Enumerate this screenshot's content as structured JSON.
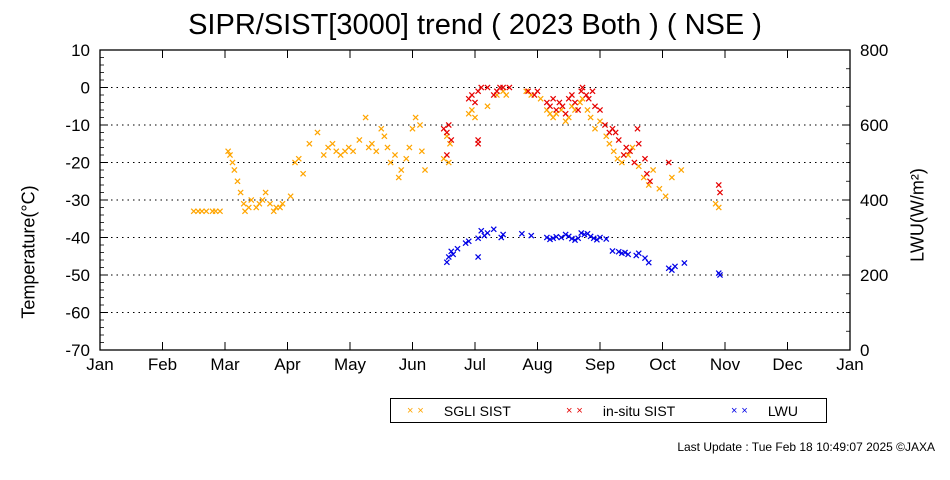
{
  "chart_data": {
    "type": "scatter",
    "title": "SIPR/SIST[3000] trend ( 2023 Both ) ( NSE )",
    "ylabel_left": "Temperature(°C)",
    "ylabel_right": "LWU(W/m²)",
    "ylim_left": [
      -70,
      10
    ],
    "ylim_right": [
      0,
      800
    ],
    "y_ticks_left": [
      "10",
      "0",
      "-10",
      "-20",
      "-30",
      "-40",
      "-50",
      "-60",
      "-70"
    ],
    "y_ticks_right": [
      "800",
      "600",
      "400",
      "200",
      "0"
    ],
    "x_ticks": [
      "Jan",
      "Feb",
      "Mar",
      "Apr",
      "May",
      "Jun",
      "Jul",
      "Aug",
      "Sep",
      "Oct",
      "Nov",
      "Dec",
      "Jan"
    ],
    "grid": "horizontal dotted",
    "series": [
      {
        "name": "SGLI SIST",
        "color": "#ffa500",
        "axis": "left",
        "points": [
          [
            2.5,
            -33
          ],
          [
            2.57,
            -33
          ],
          [
            2.63,
            -33
          ],
          [
            2.7,
            -33
          ],
          [
            2.8,
            -33
          ],
          [
            2.85,
            -33
          ],
          [
            2.92,
            -33
          ],
          [
            3.05,
            -17
          ],
          [
            3.08,
            -18
          ],
          [
            3.12,
            -20
          ],
          [
            3.15,
            -22
          ],
          [
            3.2,
            -25
          ],
          [
            3.25,
            -28
          ],
          [
            3.3,
            -31
          ],
          [
            3.32,
            -33
          ],
          [
            3.38,
            -32
          ],
          [
            3.42,
            -30
          ],
          [
            3.5,
            -32
          ],
          [
            3.55,
            -31
          ],
          [
            3.6,
            -30
          ],
          [
            3.65,
            -28
          ],
          [
            3.72,
            -31
          ],
          [
            3.78,
            -33
          ],
          [
            3.82,
            -32
          ],
          [
            3.88,
            -32
          ],
          [
            3.92,
            -31
          ],
          [
            4.05,
            -29
          ],
          [
            4.12,
            -20
          ],
          [
            4.18,
            -19
          ],
          [
            4.25,
            -23
          ],
          [
            4.35,
            -15
          ],
          [
            4.48,
            -12
          ],
          [
            4.58,
            -18
          ],
          [
            4.65,
            -16
          ],
          [
            4.72,
            -15
          ],
          [
            4.78,
            -17
          ],
          [
            4.85,
            -18
          ],
          [
            4.92,
            -17
          ],
          [
            4.98,
            -16
          ],
          [
            5.05,
            -17
          ],
          [
            5.15,
            -14
          ],
          [
            5.25,
            -8
          ],
          [
            5.3,
            -16
          ],
          [
            5.35,
            -15
          ],
          [
            5.42,
            -17
          ],
          [
            5.5,
            -11
          ],
          [
            5.55,
            -13
          ],
          [
            5.6,
            -16
          ],
          [
            5.65,
            -20
          ],
          [
            5.72,
            -18
          ],
          [
            5.78,
            -24
          ],
          [
            5.82,
            -22
          ],
          [
            5.9,
            -19
          ],
          [
            5.95,
            -16
          ],
          [
            6.0,
            -11
          ],
          [
            6.05,
            -8
          ],
          [
            6.12,
            -10
          ],
          [
            6.15,
            -17
          ],
          [
            6.2,
            -22
          ],
          [
            6.5,
            -19
          ],
          [
            6.55,
            -13
          ],
          [
            6.6,
            -15
          ],
          [
            6.58,
            -20
          ],
          [
            6.9,
            -7
          ],
          [
            6.95,
            -6
          ],
          [
            7.0,
            -8
          ],
          [
            7.2,
            -5
          ],
          [
            7.35,
            -2
          ],
          [
            7.45,
            -1
          ],
          [
            7.5,
            -2
          ],
          [
            7.82,
            -1
          ],
          [
            7.9,
            -2
          ],
          [
            8.05,
            -3
          ],
          [
            8.15,
            -6
          ],
          [
            8.2,
            -7
          ],
          [
            8.25,
            -8
          ],
          [
            8.3,
            -7
          ],
          [
            8.38,
            -6
          ],
          [
            8.45,
            -9
          ],
          [
            8.5,
            -8
          ],
          [
            8.55,
            -5
          ],
          [
            8.6,
            -6
          ],
          [
            8.68,
            -4
          ],
          [
            8.72,
            -3
          ],
          [
            8.8,
            -6
          ],
          [
            8.85,
            -8
          ],
          [
            8.92,
            -11
          ],
          [
            9.0,
            -9
          ],
          [
            9.1,
            -13
          ],
          [
            9.15,
            -15
          ],
          [
            9.22,
            -17
          ],
          [
            9.28,
            -19
          ],
          [
            9.35,
            -20
          ],
          [
            9.45,
            -18
          ],
          [
            9.52,
            -16
          ],
          [
            9.62,
            -21
          ],
          [
            9.7,
            -24
          ],
          [
            9.78,
            -26
          ],
          [
            9.85,
            -22
          ],
          [
            9.95,
            -27
          ],
          [
            10.05,
            -29
          ],
          [
            10.15,
            -24
          ],
          [
            10.3,
            -22
          ],
          [
            10.85,
            -31
          ],
          [
            10.9,
            -32
          ]
        ]
      },
      {
        "name": "in-situ SIST",
        "color": "#e60000",
        "axis": "left",
        "points": [
          [
            6.5,
            -11
          ],
          [
            6.55,
            -12
          ],
          [
            6.58,
            -10
          ],
          [
            6.62,
            -14
          ],
          [
            6.55,
            -18
          ],
          [
            6.9,
            -3
          ],
          [
            6.95,
            -2
          ],
          [
            7.0,
            -4
          ],
          [
            7.05,
            -1
          ],
          [
            7.1,
            0
          ],
          [
            7.2,
            0
          ],
          [
            7.3,
            -2
          ],
          [
            7.35,
            -1
          ],
          [
            7.4,
            0
          ],
          [
            7.45,
            0
          ],
          [
            7.05,
            -15
          ],
          [
            7.05,
            -14
          ],
          [
            7.55,
            0
          ],
          [
            7.85,
            -1
          ],
          [
            7.95,
            -2
          ],
          [
            8.0,
            -1
          ],
          [
            8.15,
            -4
          ],
          [
            8.2,
            -5
          ],
          [
            8.25,
            -3
          ],
          [
            8.3,
            -6
          ],
          [
            8.35,
            -4
          ],
          [
            8.4,
            -5
          ],
          [
            8.45,
            -7
          ],
          [
            8.5,
            -3
          ],
          [
            8.55,
            -2
          ],
          [
            8.6,
            -4
          ],
          [
            8.65,
            -6
          ],
          [
            8.7,
            -1
          ],
          [
            8.72,
            0
          ],
          [
            8.78,
            -2
          ],
          [
            8.82,
            -3
          ],
          [
            8.88,
            -1
          ],
          [
            8.92,
            -5
          ],
          [
            9.0,
            -6
          ],
          [
            9.08,
            -10
          ],
          [
            9.15,
            -12
          ],
          [
            9.2,
            -11
          ],
          [
            9.25,
            -12
          ],
          [
            9.3,
            -14
          ],
          [
            9.38,
            -18
          ],
          [
            9.42,
            -16
          ],
          [
            9.48,
            -17
          ],
          [
            9.55,
            -20
          ],
          [
            9.6,
            -11
          ],
          [
            9.62,
            -15
          ],
          [
            9.72,
            -19
          ],
          [
            9.75,
            -23
          ],
          [
            9.8,
            -25
          ],
          [
            10.1,
            -20
          ],
          [
            10.9,
            -26
          ],
          [
            10.92,
            -28
          ]
        ]
      },
      {
        "name": "LWU",
        "color": "#0000e6",
        "axis": "right",
        "points": [
          [
            6.55,
            234
          ],
          [
            6.58,
            248
          ],
          [
            6.62,
            263
          ],
          [
            6.65,
            255
          ],
          [
            6.72,
            270
          ],
          [
            6.85,
            285
          ],
          [
            6.9,
            290
          ],
          [
            7.05,
            298
          ],
          [
            7.1,
            318
          ],
          [
            7.15,
            305
          ],
          [
            7.2,
            312
          ],
          [
            7.3,
            322
          ],
          [
            7.42,
            300
          ],
          [
            7.45,
            308
          ],
          [
            7.05,
            248
          ],
          [
            7.75,
            310
          ],
          [
            7.9,
            305
          ],
          [
            8.15,
            300
          ],
          [
            8.2,
            295
          ],
          [
            8.25,
            298
          ],
          [
            8.3,
            302
          ],
          [
            8.38,
            300
          ],
          [
            8.45,
            308
          ],
          [
            8.5,
            303
          ],
          [
            8.55,
            297
          ],
          [
            8.6,
            293
          ],
          [
            8.65,
            298
          ],
          [
            8.7,
            312
          ],
          [
            8.75,
            308
          ],
          [
            8.8,
            310
          ],
          [
            8.85,
            303
          ],
          [
            8.9,
            298
          ],
          [
            8.95,
            294
          ],
          [
            9.0,
            300
          ],
          [
            9.1,
            296
          ],
          [
            9.2,
            264
          ],
          [
            9.3,
            262
          ],
          [
            9.35,
            258
          ],
          [
            9.4,
            260
          ],
          [
            9.45,
            255
          ],
          [
            9.58,
            252
          ],
          [
            9.62,
            258
          ],
          [
            9.72,
            245
          ],
          [
            9.78,
            233
          ],
          [
            10.1,
            218
          ],
          [
            10.15,
            213
          ],
          [
            10.2,
            223
          ],
          [
            10.35,
            232
          ],
          [
            10.9,
            205
          ],
          [
            10.92,
            200
          ]
        ]
      }
    ]
  },
  "legend": {
    "sgli_label": "SGLI SIST",
    "insitu_label": "in-situ SIST",
    "lwu_label": "LWU"
  },
  "footer": "Last Update : Tue Feb 18 10:49:07 2025  ©JAXA"
}
